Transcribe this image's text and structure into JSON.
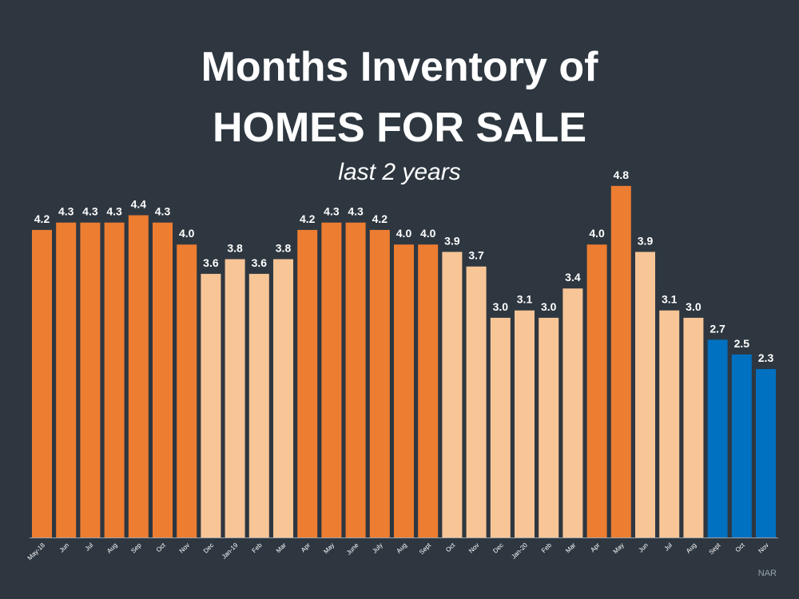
{
  "title_line1": "Months Inventory of",
  "title_line2": "HOMES FOR SALE",
  "subtitle": "last 2 years",
  "source": "NAR",
  "colors": {
    "background": "#2e3740",
    "dark_orange": "#ed7d31",
    "light_orange": "#f8c597",
    "blue": "#0070c0",
    "text": "#ffffff",
    "axis": "#9aa3ab"
  },
  "chart_data": {
    "type": "bar",
    "title": "Months Inventory of HOMES FOR SALE",
    "subtitle": "last 2 years",
    "xlabel": "",
    "ylabel": "",
    "ylim": [
      0,
      5.0
    ],
    "grid": false,
    "legend": "none",
    "categories": [
      "May-18",
      "Jun",
      "Jul",
      "Aug",
      "Sep",
      "Oct",
      "Nov",
      "Dec",
      "Jan-19",
      "Feb",
      "Mar",
      "Apr",
      "May",
      "June",
      "July",
      "Aug",
      "Sept",
      "Oct",
      "Nov",
      "Dec",
      "Jan-20",
      "Feb",
      "Mar",
      "Apr",
      "May",
      "Jun",
      "Jul",
      "Aug",
      "Sept",
      "Oct",
      "Nov"
    ],
    "values": [
      4.2,
      4.3,
      4.3,
      4.3,
      4.4,
      4.3,
      4.0,
      3.6,
      3.8,
      3.6,
      3.8,
      4.2,
      4.3,
      4.3,
      4.2,
      4.0,
      4.0,
      3.9,
      3.7,
      3.0,
      3.1,
      3.0,
      3.4,
      4.0,
      4.8,
      3.9,
      3.1,
      3.0,
      2.7,
      2.5,
      2.3
    ],
    "labels": [
      "4.2",
      "4.3",
      "4.3",
      "4.3",
      "4.4",
      "4.3",
      "4.0",
      "3.6",
      "3.8",
      "3.6",
      "3.8",
      "4.2",
      "4.3",
      "4.3",
      "4.2",
      "4.0",
      "4.0",
      "3.9",
      "3.7",
      "3.0",
      "3.1",
      "3.0",
      "3.4",
      "4.0",
      "4.8",
      "3.9",
      "3.1",
      "3.0",
      "2.7",
      "2.5",
      "2.3"
    ],
    "bar_colors": [
      "dark_orange",
      "dark_orange",
      "dark_orange",
      "dark_orange",
      "dark_orange",
      "dark_orange",
      "dark_orange",
      "light_orange",
      "light_orange",
      "light_orange",
      "light_orange",
      "dark_orange",
      "dark_orange",
      "dark_orange",
      "dark_orange",
      "dark_orange",
      "dark_orange",
      "light_orange",
      "light_orange",
      "light_orange",
      "light_orange",
      "light_orange",
      "light_orange",
      "dark_orange",
      "dark_orange",
      "light_orange",
      "light_orange",
      "light_orange",
      "blue",
      "blue",
      "blue"
    ]
  }
}
